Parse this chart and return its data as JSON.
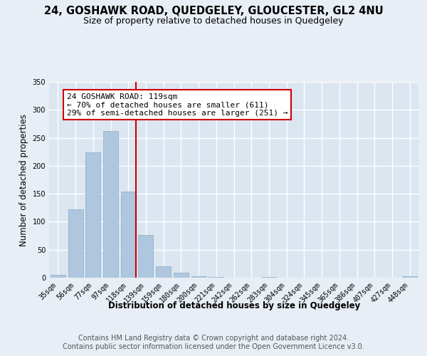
{
  "title": "24, GOSHAWK ROAD, QUEDGELEY, GLOUCESTER, GL2 4NU",
  "subtitle": "Size of property relative to detached houses in Quedgeley",
  "xlabel": "Distribution of detached houses by size in Quedgeley",
  "ylabel": "Number of detached properties",
  "bin_labels": [
    "35sqm",
    "56sqm",
    "77sqm",
    "97sqm",
    "118sqm",
    "139sqm",
    "159sqm",
    "180sqm",
    "200sqm",
    "221sqm",
    "242sqm",
    "262sqm",
    "283sqm",
    "304sqm",
    "324sqm",
    "345sqm",
    "365sqm",
    "386sqm",
    "407sqm",
    "427sqm",
    "448sqm"
  ],
  "bar_values": [
    5,
    122,
    224,
    262,
    154,
    76,
    21,
    9,
    3,
    1,
    0,
    0,
    1,
    0,
    0,
    0,
    0,
    0,
    0,
    0,
    2
  ],
  "bar_color": "#aec6de",
  "bar_edge_color": "#8aafc8",
  "background_color": "#e8eef5",
  "plot_bg_color": "#dce6f0",
  "grid_color": "#ffffff",
  "marker_label": "24 GOSHAWK ROAD: 119sqm",
  "annotation_line1": "← 70% of detached houses are smaller (611)",
  "annotation_line2": "29% of semi-detached houses are larger (251) →",
  "annotation_box_color": "#ffffff",
  "annotation_box_edge": "#cc0000",
  "marker_line_color": "#cc0000",
  "ylim": [
    0,
    350
  ],
  "yticks": [
    0,
    50,
    100,
    150,
    200,
    250,
    300,
    350
  ],
  "footer_line1": "Contains HM Land Registry data © Crown copyright and database right 2024.",
  "footer_line2": "Contains public sector information licensed under the Open Government Licence v3.0.",
  "title_fontsize": 10.5,
  "subtitle_fontsize": 9,
  "axis_label_fontsize": 8.5,
  "tick_fontsize": 7,
  "annotation_fontsize": 8,
  "footer_fontsize": 7
}
